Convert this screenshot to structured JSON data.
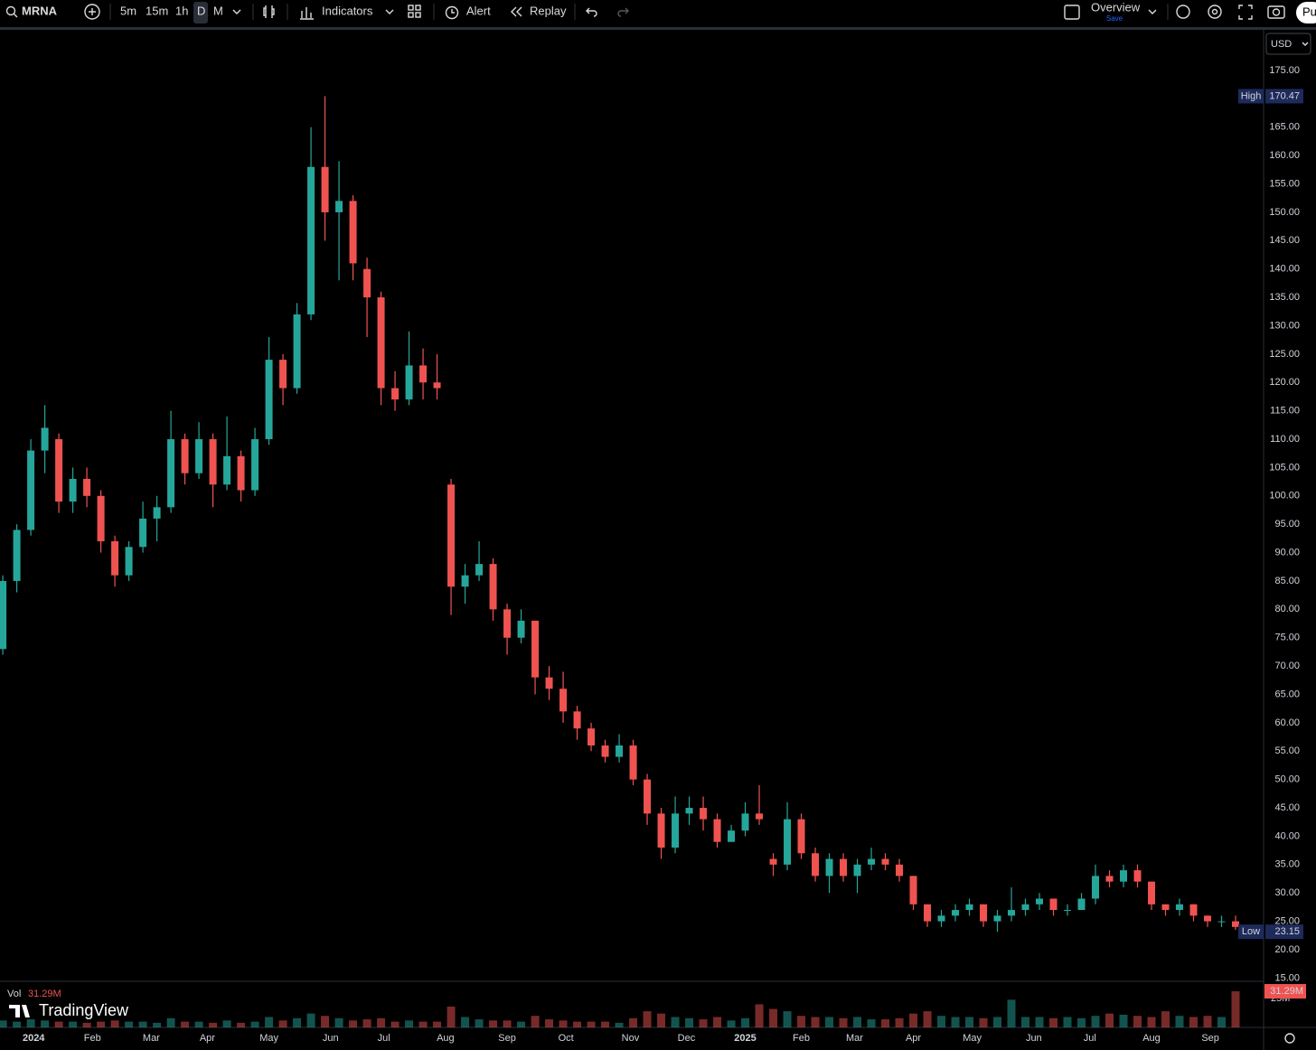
{
  "toolbar": {
    "symbol": "MRNA",
    "intervals": [
      "5m",
      "15m",
      "1h",
      "D",
      "M"
    ],
    "indicators": "Indicators",
    "alert": "Alert",
    "replay": "Replay",
    "layout": "Overview",
    "layout_status": "Save",
    "publish": "Pu"
  },
  "branding": "TradingView",
  "chart_data": {
    "type": "candlestick",
    "currency": "USD",
    "up_color": "#26a69a",
    "down_color": "#ef5350",
    "x": [
      1,
      6,
      11,
      16,
      21,
      26,
      31,
      36,
      41,
      46,
      51,
      56,
      61,
      66,
      71,
      76,
      81,
      86,
      91,
      96,
      101,
      106,
      111,
      116,
      121,
      126,
      131,
      136,
      141,
      146,
      151,
      156,
      161,
      166,
      171,
      176,
      181,
      186,
      191,
      196,
      201,
      206,
      211,
      216,
      221,
      226,
      231,
      236,
      241,
      246,
      251,
      256,
      261,
      266,
      271,
      276,
      281,
      286,
      291,
      296,
      301,
      306,
      311,
      316,
      321,
      326,
      331,
      336,
      341,
      346,
      351,
      356,
      361,
      366,
      371,
      376,
      381,
      386,
      391,
      396,
      401,
      406,
      411,
      416,
      421,
      426,
      431,
      436,
      441
    ],
    "open": [
      73,
      85,
      94,
      108,
      110,
      99,
      103,
      100,
      92,
      86,
      91,
      96,
      98,
      110,
      104,
      110,
      102,
      107,
      101,
      110,
      124,
      119,
      132,
      158,
      150,
      152,
      140,
      135,
      119,
      117,
      123,
      120,
      102,
      84,
      86,
      88,
      80,
      75,
      78,
      68,
      66,
      62,
      59,
      56,
      54,
      56,
      50,
      44,
      38,
      44,
      45,
      43,
      39,
      41,
      44,
      36,
      35,
      43,
      37,
      33,
      36,
      33,
      35,
      36,
      35,
      33,
      28,
      25,
      26,
      27,
      28,
      25,
      26,
      27,
      28,
      29,
      27,
      27,
      29,
      33,
      32,
      34,
      32,
      28,
      27,
      28,
      26,
      25,
      25
    ],
    "high": [
      86,
      95,
      110,
      116,
      111,
      105,
      105,
      101,
      93,
      92,
      99,
      100,
      115,
      111,
      113,
      111,
      114,
      108,
      112,
      128,
      125,
      134,
      165,
      170.47,
      159,
      153,
      142,
      136,
      122,
      129,
      126,
      125,
      103,
      88,
      92,
      89,
      81,
      80,
      78,
      70,
      69,
      63,
      60,
      57,
      58,
      57,
      51,
      45,
      47,
      47,
      47,
      44,
      42,
      46,
      49,
      37,
      46,
      44,
      38,
      37,
      37,
      36,
      38,
      37,
      36,
      33,
      28,
      27,
      28,
      29,
      28,
      27,
      31,
      29,
      30,
      29,
      28,
      30,
      35,
      34,
      35,
      35,
      32,
      28,
      29,
      28,
      26,
      26,
      26
    ],
    "low": [
      72,
      83,
      93,
      104,
      97,
      97,
      98,
      90,
      84,
      85,
      90,
      92,
      97,
      102,
      103,
      98,
      101,
      99,
      100,
      109,
      116,
      118,
      131,
      145,
      138,
      138,
      128,
      116,
      115,
      116,
      117,
      117,
      79,
      81,
      85,
      78,
      72,
      74,
      65,
      64,
      60,
      57,
      55,
      53,
      53,
      49,
      42,
      36,
      37,
      42,
      41,
      38,
      39,
      40,
      42,
      33,
      34,
      36,
      32,
      30,
      32,
      30,
      34,
      34,
      32,
      27,
      24,
      24,
      25,
      26,
      24,
      23.15,
      25,
      26,
      27,
      26,
      26,
      27,
      28,
      31,
      31,
      31,
      27,
      26,
      26,
      25,
      24,
      24,
      23.5
    ],
    "close": [
      85,
      94,
      108,
      112,
      99,
      103,
      100,
      92,
      86,
      91,
      96,
      98,
      110,
      104,
      110,
      102,
      107,
      101,
      110,
      124,
      119,
      132,
      158,
      150,
      152,
      141,
      135,
      119,
      117,
      123,
      120,
      119,
      84,
      86,
      88,
      80,
      75,
      78,
      68,
      66,
      62,
      59,
      56,
      54,
      56,
      50,
      44,
      38,
      44,
      45,
      43,
      39,
      41,
      44,
      43,
      35,
      43,
      37,
      33,
      36,
      33,
      35,
      36,
      35,
      33,
      28,
      25,
      26,
      27,
      28,
      25,
      26,
      27,
      28,
      29,
      27,
      27,
      29,
      33,
      32,
      34,
      32,
      28,
      27,
      28,
      26,
      25,
      25,
      24
    ],
    "xlim": [
      0,
      451
    ],
    "xticks": [
      {
        "value": 12,
        "label": "2024"
      },
      {
        "value": 33,
        "label": "Feb"
      },
      {
        "value": 54,
        "label": "Mar"
      },
      {
        "value": 74,
        "label": "Apr"
      },
      {
        "value": 96,
        "label": "May"
      },
      {
        "value": 118,
        "label": "Jun"
      },
      {
        "value": 137,
        "label": "Jul"
      },
      {
        "value": 159,
        "label": "Aug"
      },
      {
        "value": 181,
        "label": "Sep"
      },
      {
        "value": 202,
        "label": "Oct"
      },
      {
        "value": 225,
        "label": "Nov"
      },
      {
        "value": 245,
        "label": "Dec"
      },
      {
        "value": 266,
        "label": "2025"
      },
      {
        "value": 286,
        "label": "Feb"
      },
      {
        "value": 305,
        "label": "Mar"
      },
      {
        "value": 326,
        "label": "Apr"
      },
      {
        "value": 347,
        "label": "May"
      },
      {
        "value": 369,
        "label": "Jun"
      },
      {
        "value": 389,
        "label": "Jul"
      },
      {
        "value": 411,
        "label": "Aug"
      },
      {
        "value": 432,
        "label": "Sep"
      }
    ],
    "ylim": [
      14.58,
      181.85
    ],
    "yticks": [
      {
        "value": 15,
        "label": "15.00"
      },
      {
        "value": 20,
        "label": "20.00"
      },
      {
        "value": 25,
        "label": "25.00"
      },
      {
        "value": 30,
        "label": "30.00"
      },
      {
        "value": 35,
        "label": "35.00"
      },
      {
        "value": 40,
        "label": "40.00"
      },
      {
        "value": 45,
        "label": "45.00"
      },
      {
        "value": 50,
        "label": "50.00"
      },
      {
        "value": 55,
        "label": "55.00"
      },
      {
        "value": 60,
        "label": "60.00"
      },
      {
        "value": 65,
        "label": "65.00"
      },
      {
        "value": 70,
        "label": "70.00"
      },
      {
        "value": 75,
        "label": "75.00"
      },
      {
        "value": 80,
        "label": "80.00"
      },
      {
        "value": 85,
        "label": "85.00"
      },
      {
        "value": 90,
        "label": "90.00"
      },
      {
        "value": 95,
        "label": "95.00"
      },
      {
        "value": 100,
        "label": "100.00"
      },
      {
        "value": 105,
        "label": "105.00"
      },
      {
        "value": 110,
        "label": "110.00"
      },
      {
        "value": 115,
        "label": "115.00"
      },
      {
        "value": 120,
        "label": "120.00"
      },
      {
        "value": 125,
        "label": "125.00"
      },
      {
        "value": 130,
        "label": "130.00"
      },
      {
        "value": 135,
        "label": "135.00"
      },
      {
        "value": 140,
        "label": "140.00"
      },
      {
        "value": 145,
        "label": "145.00"
      },
      {
        "value": 150,
        "label": "150.00"
      },
      {
        "value": 155,
        "label": "155.00"
      },
      {
        "value": 160,
        "label": "160.00"
      },
      {
        "value": 165,
        "label": "165.00"
      },
      {
        "value": 170,
        "label": "170.00"
      },
      {
        "value": 175,
        "label": "175.00"
      }
    ],
    "high_marker": {
      "label": "High",
      "value": 170.47
    },
    "low_marker": {
      "label": "Low",
      "value": 23.15
    },
    "volume": {
      "name": "Vol",
      "last_label": "31.29M",
      "ylim": [
        0,
        40.7
      ],
      "yticks": [
        {
          "value": 25,
          "label": "25M"
        }
      ],
      "values": [
        6,
        5,
        7,
        6,
        5,
        5,
        4,
        5,
        6,
        5,
        5,
        4,
        8,
        5,
        5,
        4,
        6,
        4,
        5,
        9,
        6,
        8,
        12,
        10,
        8,
        6,
        7,
        8,
        5,
        6,
        5,
        5,
        18,
        9,
        7,
        6,
        6,
        5,
        10,
        7,
        6,
        5,
        5,
        5,
        4,
        8,
        14,
        12,
        9,
        8,
        7,
        9,
        6,
        8,
        20,
        16,
        14,
        10,
        9,
        9,
        8,
        9,
        7,
        7,
        8,
        12,
        14,
        10,
        9,
        9,
        8,
        9,
        24,
        9,
        9,
        8,
        9,
        8,
        10,
        12,
        11,
        10,
        9,
        14,
        10,
        9,
        10,
        9,
        31.29
      ]
    }
  }
}
